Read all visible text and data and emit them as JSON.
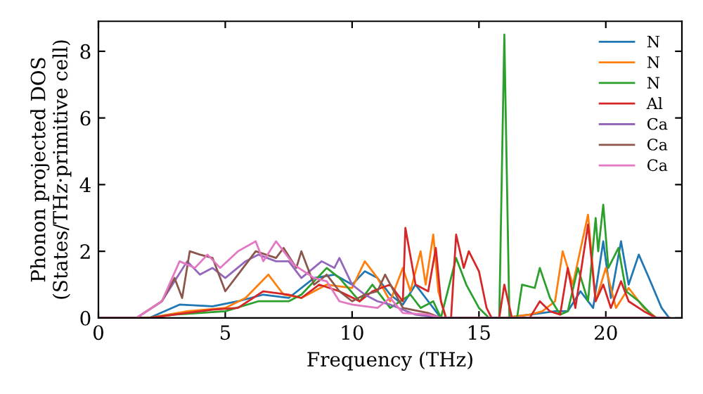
{
  "chart_data": {
    "type": "line",
    "xlabel": "Frequency (THz)",
    "ylabel": "Phonon projected DOS\n(States/THz·primitive cell)",
    "xlim": [
      0,
      23
    ],
    "ylim": [
      0,
      8.9
    ],
    "xticks": [
      0,
      5,
      10,
      15,
      20
    ],
    "yticks": [
      0,
      2,
      4,
      6,
      8
    ],
    "legend": "top right",
    "grid": false,
    "marker": "none",
    "line_style": "solid",
    "series": [
      {
        "name": "N",
        "color": "#1f77b4",
        "x": [
          0,
          2,
          3.2,
          4.5,
          5.5,
          6.5,
          7.5,
          8.5,
          9.3,
          10,
          10.5,
          11,
          11.5,
          12,
          12.5,
          13,
          13.5,
          16,
          17,
          18,
          18.5,
          19,
          19.5,
          19.9,
          20.2,
          20.6,
          20.9,
          21.3,
          21.7,
          22.2,
          22.5
        ],
        "values": [
          0,
          0,
          0.4,
          0.35,
          0.5,
          0.7,
          0.6,
          1.2,
          1.3,
          1,
          1.4,
          1.2,
          0.7,
          0.4,
          1,
          0.5,
          0,
          0,
          0.1,
          0.2,
          0.2,
          0.8,
          0.3,
          2.3,
          0.6,
          2.3,
          1,
          1.9,
          1.2,
          0.3,
          0
        ]
      },
      {
        "name": "N",
        "color": "#ff7f0e",
        "x": [
          0,
          2,
          3.5,
          5,
          5.8,
          6.7,
          7.3,
          8,
          9,
          10,
          10.5,
          11,
          11.5,
          12,
          12.3,
          12.7,
          12.9,
          13.2,
          13.4,
          13.7,
          16,
          17,
          17.5,
          18,
          18.3,
          18.7,
          19.3,
          19.6,
          20,
          20.4,
          20.9,
          21.5,
          22
        ],
        "values": [
          0,
          0,
          0.2,
          0.3,
          0.6,
          1.3,
          0.7,
          0.6,
          1,
          0.9,
          1.7,
          1.2,
          0.5,
          1.5,
          0.8,
          2,
          1,
          2.5,
          0.8,
          0,
          0,
          0.1,
          0.2,
          0.5,
          2,
          1,
          3.1,
          0.5,
          1.5,
          0.3,
          0.9,
          0.3,
          0
        ]
      },
      {
        "name": "N",
        "color": "#2ca02c",
        "x": [
          0,
          2,
          3,
          5,
          6.3,
          7.5,
          8,
          9,
          9.5,
          10.3,
          10.8,
          11.5,
          12.3,
          12.7,
          13.2,
          13.5,
          14.1,
          14.5,
          15,
          15.4,
          15.8,
          16,
          16.2,
          16.5,
          16.7,
          17.2,
          17.4,
          17.8,
          18.2,
          18.5,
          18.9,
          19.3,
          19.6,
          19.7,
          19.9,
          20.1,
          20.5,
          20.8,
          21.3,
          21.8,
          22
        ],
        "values": [
          0,
          0,
          0.1,
          0.2,
          0.5,
          0.5,
          0.7,
          1.5,
          1.2,
          0.5,
          1,
          0.3,
          0.7,
          0.3,
          0.5,
          0,
          1.8,
          1,
          0.3,
          0,
          0,
          8.5,
          0,
          0,
          1,
          0.9,
          1.5,
          0.6,
          0.1,
          0.2,
          1.5,
          0.5,
          3,
          2,
          3.4,
          1.5,
          2.1,
          0.8,
          0.5,
          0.1,
          0
        ]
      },
      {
        "name": "Al",
        "color": "#d62728",
        "x": [
          0,
          2,
          3,
          4.5,
          5.5,
          6.5,
          7.5,
          8,
          8.7,
          9.5,
          10.3,
          10.8,
          11.5,
          12,
          12.1,
          12.5,
          13,
          13.3,
          13.5,
          13.7,
          13.9,
          14.1,
          14.4,
          14.6,
          15,
          15.3,
          15.5,
          15.8,
          16,
          16.3,
          17,
          17.4,
          17.8,
          18.2,
          18.5,
          18.8,
          19.3,
          19.6,
          19.9,
          20.2,
          20.6,
          20.9,
          21.5,
          22
        ],
        "values": [
          0,
          0,
          0.1,
          0.25,
          0.3,
          0.8,
          0.7,
          0.6,
          1,
          0.8,
          0.5,
          0.8,
          1,
          0.5,
          2.7,
          1,
          0.8,
          2.1,
          0.5,
          0,
          0,
          2.5,
          1.5,
          2,
          1.4,
          0.3,
          0,
          0,
          1,
          0,
          0,
          0.5,
          0.2,
          0.1,
          1.5,
          0.3,
          2.8,
          0.5,
          1,
          0.3,
          1.1,
          0.5,
          0.2,
          0
        ]
      },
      {
        "name": "Ca",
        "color": "#9467bd",
        "x": [
          0,
          1.5,
          2.5,
          3.5,
          4,
          4.5,
          5,
          5.8,
          6.3,
          7,
          7.5,
          8,
          8.8,
          9.3,
          9.5,
          10,
          10.5,
          11,
          11.5,
          12.5,
          13.5,
          22.5
        ],
        "values": [
          0,
          0,
          0.5,
          1.7,
          1.3,
          1.5,
          1.2,
          1.7,
          1.9,
          1.7,
          1.7,
          1.2,
          1.7,
          1.5,
          1.8,
          1,
          0.7,
          0.5,
          0.4,
          0.1,
          0,
          0
        ]
      },
      {
        "name": "Ca",
        "color": "#8c564b",
        "x": [
          0,
          1.5,
          2.5,
          3,
          3.3,
          3.6,
          4,
          4.5,
          4.8,
          5,
          5.5,
          6.2,
          7,
          7.3,
          7.8,
          8,
          8.5,
          9,
          9.5,
          10,
          10.5,
          11,
          11.3,
          12,
          13,
          13.5,
          22.5
        ],
        "values": [
          0,
          0,
          0.5,
          1.2,
          0.6,
          2,
          1.9,
          1.8,
          1.2,
          0.8,
          1.3,
          2,
          1.8,
          2.1,
          1.5,
          2,
          1,
          1.3,
          0.8,
          0.5,
          0.7,
          0.8,
          1.3,
          0.3,
          0.15,
          0,
          0
        ]
      },
      {
        "name": "Ca",
        "color": "#e377c2",
        "x": [
          0,
          1.5,
          2.5,
          3.2,
          3.8,
          4.3,
          4.8,
          5.5,
          6.2,
          6.5,
          7,
          7.7,
          8.5,
          9,
          9.5,
          10,
          11,
          11.5,
          12,
          13,
          13.5,
          22.5
        ],
        "values": [
          0,
          0,
          0.5,
          1.7,
          1.5,
          1.9,
          1.5,
          2,
          2.3,
          1.7,
          2.3,
          1.6,
          1.2,
          1.1,
          0.5,
          0.4,
          0.3,
          0.6,
          0.15,
          0.1,
          0,
          0
        ]
      }
    ]
  }
}
